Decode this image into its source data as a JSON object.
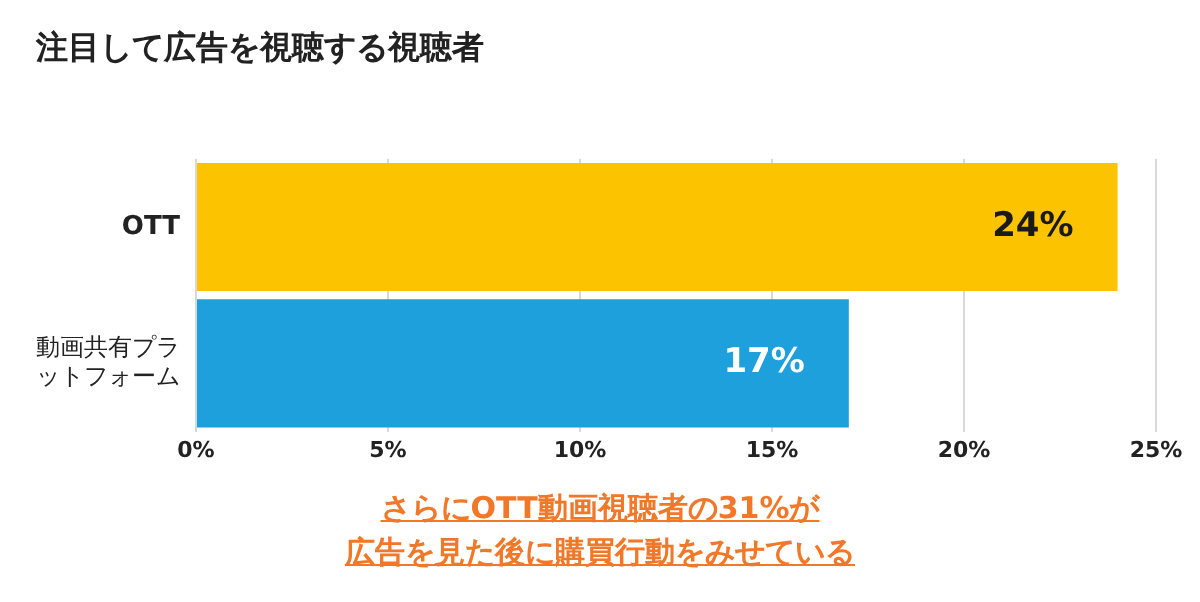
{
  "chart_data": {
    "type": "bar",
    "orientation": "horizontal",
    "title": "注目して広告を視聴する視聴者",
    "categories": [
      "OTT",
      "動画共有プラットフォーム"
    ],
    "values": [
      24,
      17
    ],
    "colors": [
      "#fcc300",
      "#1ea0dc"
    ],
    "value_labels": [
      "24%",
      "17%"
    ],
    "xlim": [
      0,
      25
    ],
    "xticks": [
      {
        "value": 0,
        "label": "0%"
      },
      {
        "value": 5,
        "label": "5%"
      },
      {
        "value": 10,
        "label": "10%"
      },
      {
        "value": 15,
        "label": "15%"
      },
      {
        "value": 20,
        "label": "20%"
      },
      {
        "value": 25,
        "label": "25%"
      }
    ],
    "grid": "x",
    "annotations": [
      "さらにOTT動画視聴者の31%が",
      "広告を見た後に購買行動をみせている"
    ]
  }
}
